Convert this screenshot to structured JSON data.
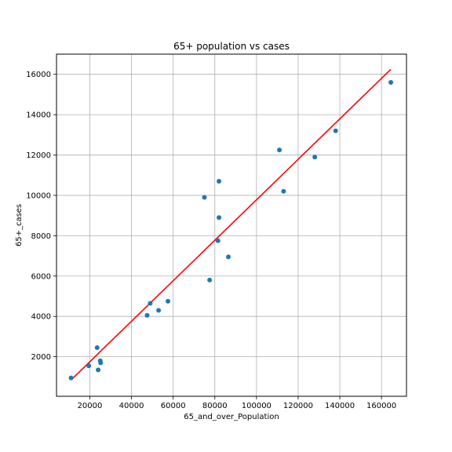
{
  "chart_data": {
    "type": "scatter",
    "title": "65+ population vs cases",
    "xlabel": "65_and_over_Population",
    "ylabel": "65+_cases",
    "xlim": [
      4000,
      172000
    ],
    "ylim": [
      40,
      17000
    ],
    "xticks": [
      20000,
      40000,
      60000,
      80000,
      100000,
      120000,
      140000,
      160000
    ],
    "yticks": [
      2000,
      4000,
      6000,
      8000,
      10000,
      12000,
      14000,
      16000
    ],
    "grid": true,
    "points": [
      {
        "x": 11000,
        "y": 950
      },
      {
        "x": 19500,
        "y": 1550
      },
      {
        "x": 23500,
        "y": 2450
      },
      {
        "x": 24000,
        "y": 1350
      },
      {
        "x": 25000,
        "y": 1800
      },
      {
        "x": 25200,
        "y": 1700
      },
      {
        "x": 47500,
        "y": 4050
      },
      {
        "x": 49000,
        "y": 4650
      },
      {
        "x": 53000,
        "y": 4300
      },
      {
        "x": 57500,
        "y": 4750
      },
      {
        "x": 75000,
        "y": 9900
      },
      {
        "x": 77500,
        "y": 5800
      },
      {
        "x": 81500,
        "y": 7750
      },
      {
        "x": 82000,
        "y": 10700
      },
      {
        "x": 82000,
        "y": 8900
      },
      {
        "x": 86500,
        "y": 6950
      },
      {
        "x": 111000,
        "y": 12250
      },
      {
        "x": 113000,
        "y": 10200
      },
      {
        "x": 128000,
        "y": 11900
      },
      {
        "x": 138000,
        "y": 13200
      },
      {
        "x": 164500,
        "y": 15600
      }
    ],
    "fit_line": {
      "x": [
        11000,
        164500
      ],
      "y": [
        850,
        16250
      ]
    },
    "colors": {
      "points": "#1f77b4",
      "fit_line": "#ff0000",
      "grid": "#b0b0b0"
    }
  }
}
